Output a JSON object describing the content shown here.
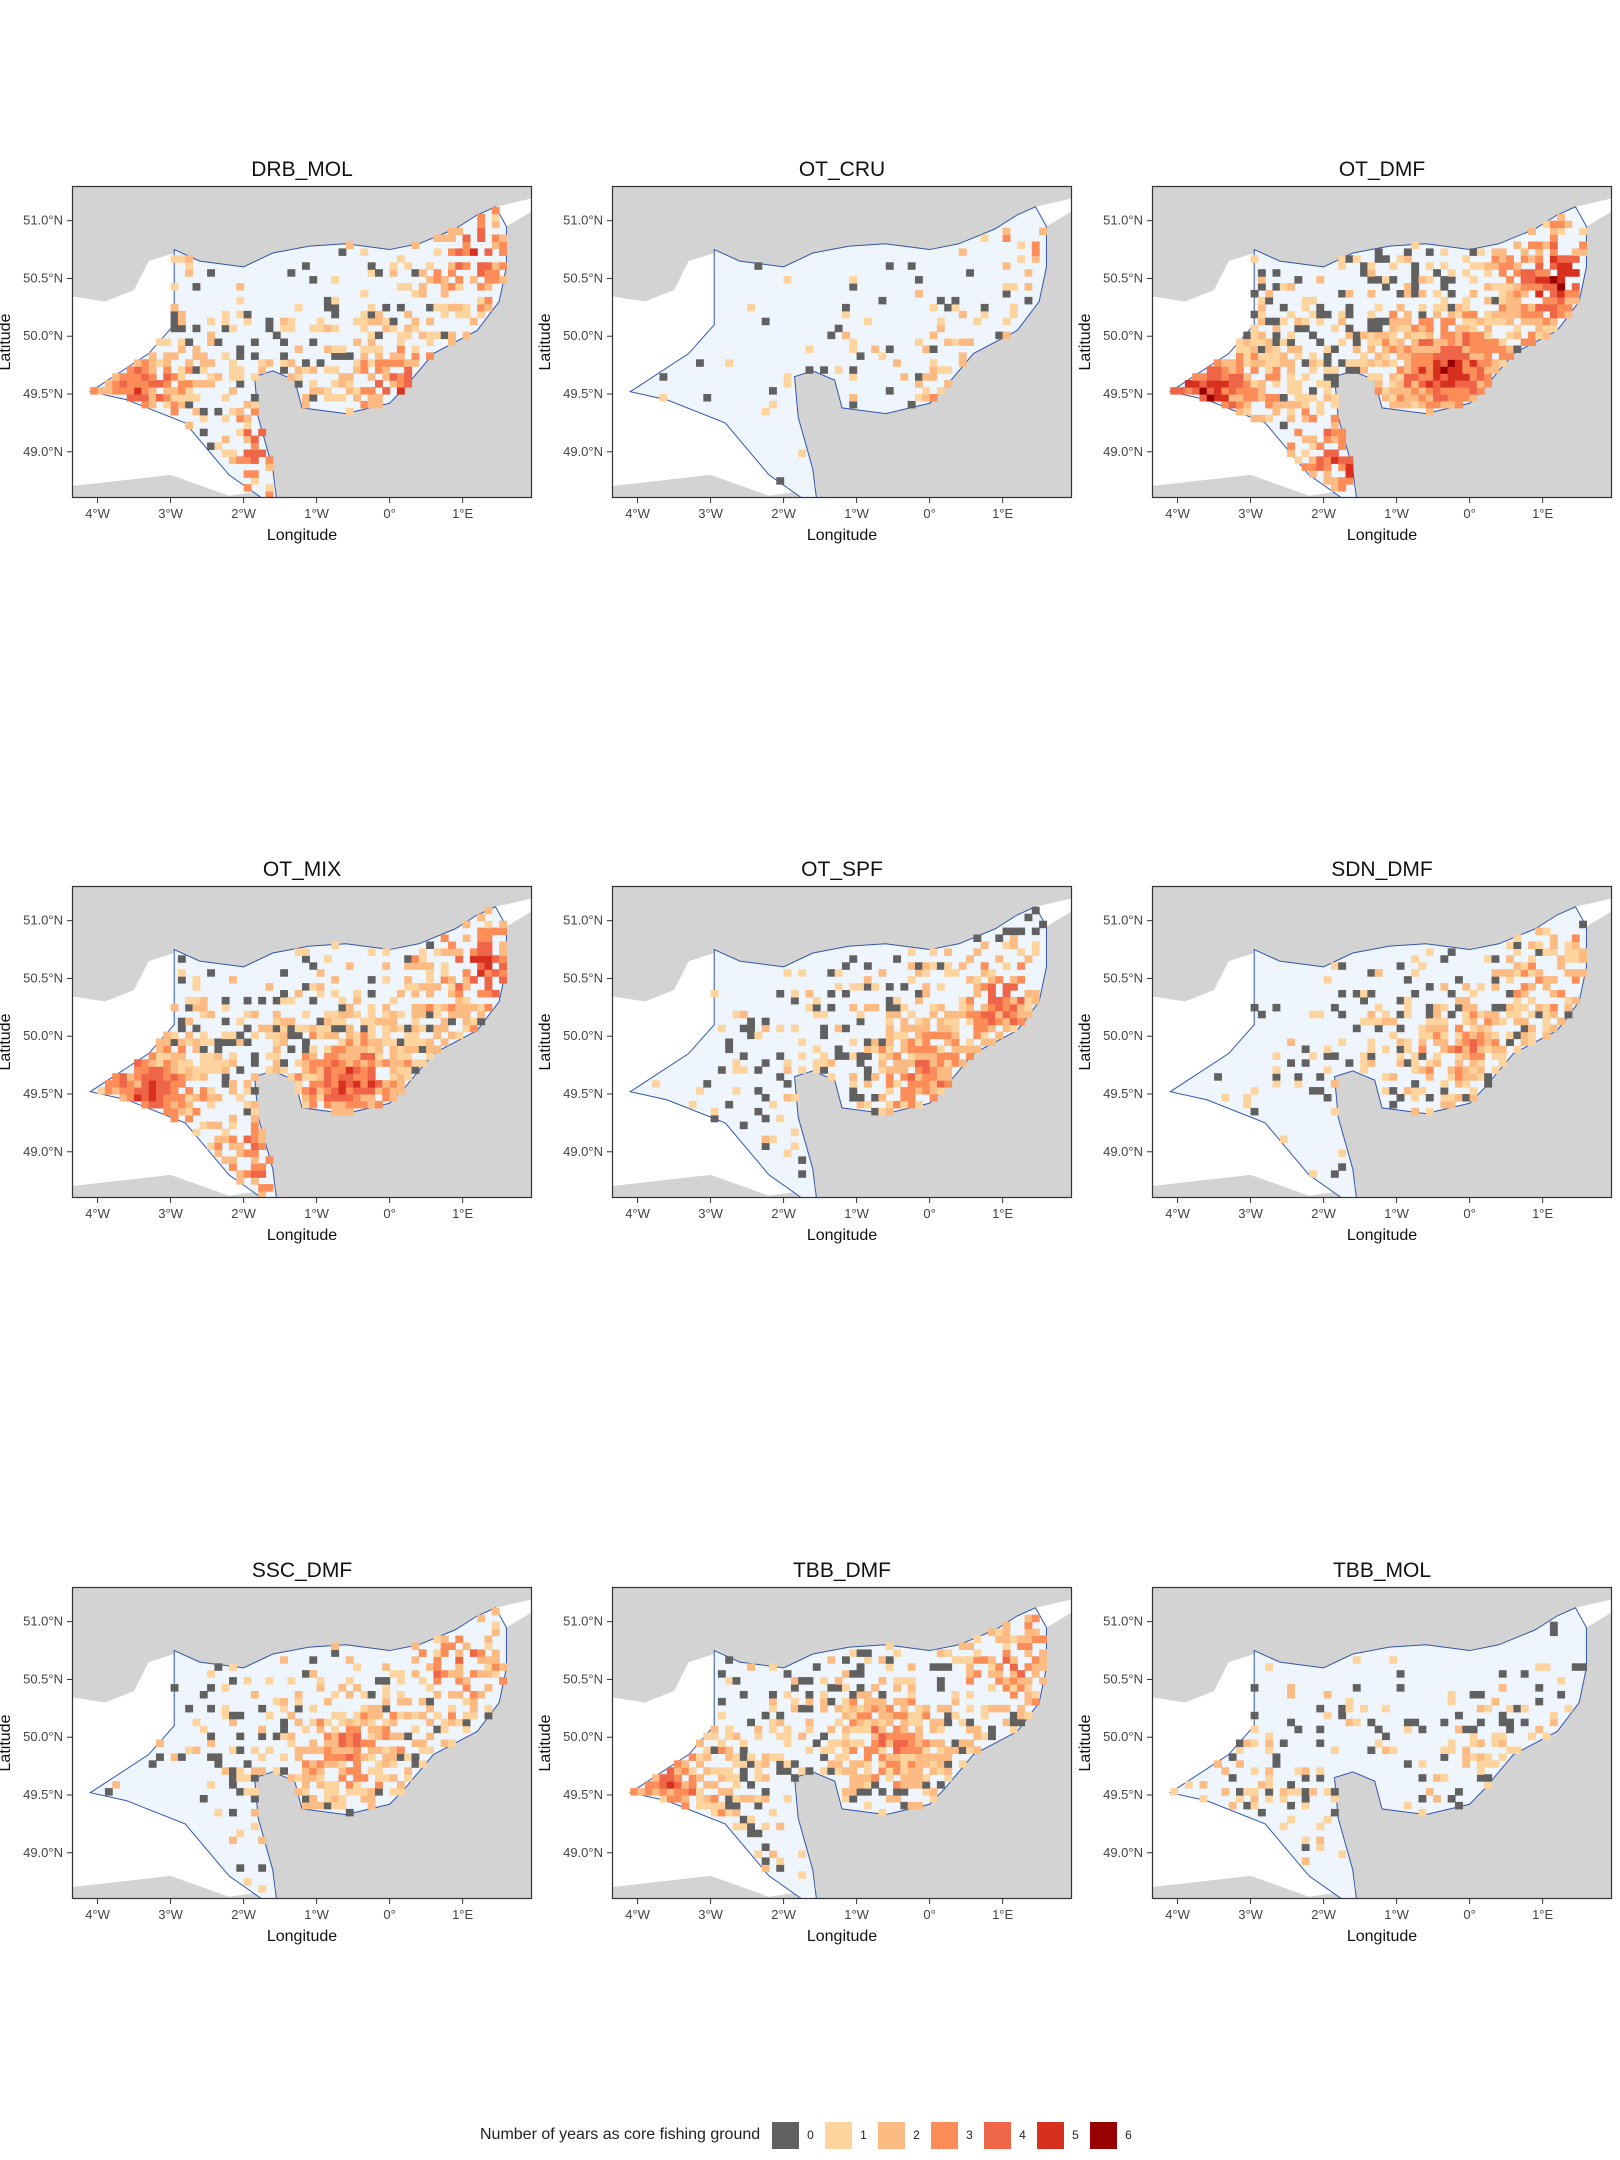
{
  "panels": [
    {
      "title": "DRB_MOL",
      "xlabel": "Longitude",
      "ylabel": "Latitude"
    },
    {
      "title": "OT_CRU",
      "xlabel": "Longitude",
      "ylabel": "Latitude"
    },
    {
      "title": "OT_DMF",
      "xlabel": "Longitude",
      "ylabel": "Latitude"
    },
    {
      "title": "OT_MIX",
      "xlabel": "Longitude",
      "ylabel": "Latitude"
    },
    {
      "title": "OT_SPF",
      "xlabel": "Longitude",
      "ylabel": "Latitude"
    },
    {
      "title": "SDN_DMF",
      "xlabel": "Longitude",
      "ylabel": "Latitude"
    },
    {
      "title": "SSC_DMF",
      "xlabel": "Longitude",
      "ylabel": "Latitude"
    },
    {
      "title": "TBB_DMF",
      "xlabel": "Longitude",
      "ylabel": "Latitude"
    },
    {
      "title": "TBB_MOL",
      "xlabel": "Longitude",
      "ylabel": "Latitude"
    }
  ],
  "axes": {
    "x_ticks": [
      "4°W",
      "3°W",
      "2°W",
      "1°W",
      "0°",
      "1°E"
    ],
    "y_ticks": [
      "51.0°N",
      "50.5°N",
      "50.0°N",
      "49.5°N",
      "49.0°N"
    ]
  },
  "legend": {
    "title": "Number of years as core fishing ground",
    "items": [
      {
        "label": "0",
        "color": "#616161"
      },
      {
        "label": "1",
        "color": "#FDD49E"
      },
      {
        "label": "2",
        "color": "#FDBB84"
      },
      {
        "label": "3",
        "color": "#FC8D59"
      },
      {
        "label": "4",
        "color": "#EF6548"
      },
      {
        "label": "5",
        "color": "#D7301F"
      },
      {
        "label": "6",
        "color": "#990000"
      }
    ]
  },
  "colors": {
    "land": "#D3D3D3",
    "coast": "#3355AA",
    "sea_area": "#EEF5FC",
    "panel_border": "#333333"
  }
}
